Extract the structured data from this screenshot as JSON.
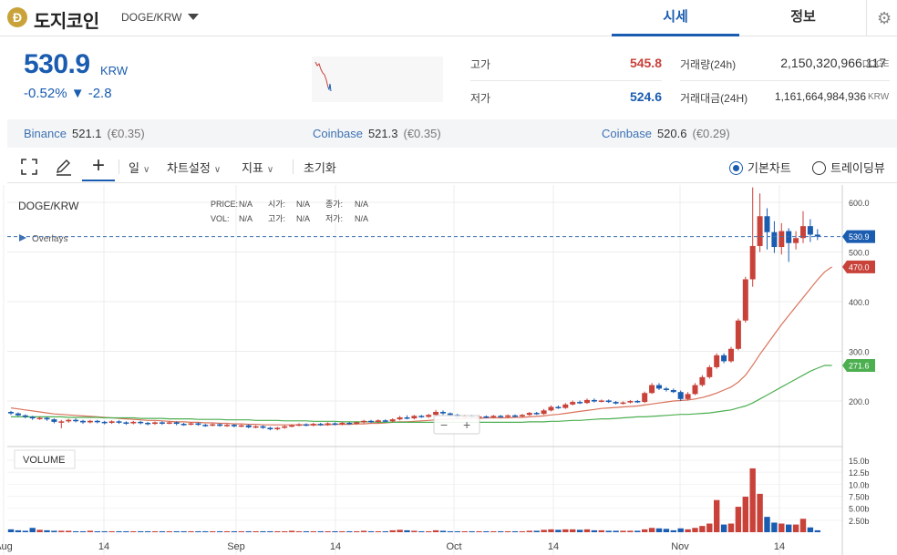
{
  "header": {
    "coin_symbol_glyph": "Ð",
    "coin_name": "도지코인",
    "pair": "DOGE/KRW",
    "tabs": [
      {
        "label": "시세",
        "active": true
      },
      {
        "label": "정보",
        "active": false
      }
    ]
  },
  "price": {
    "current": "530.9",
    "unit": "KRW",
    "change": "-0.52% ▼ -2.8"
  },
  "stats": {
    "high_label": "고가",
    "high_value": "545.8",
    "low_label": "저가",
    "low_value": "524.6",
    "volume_label": "거래량(24h)",
    "volume_value": "2,150,320,966.117",
    "volume_unit": "DOGE",
    "turnover_label": "거래대금(24H)",
    "turnover_value": "1,161,664,984,936",
    "turnover_unit": "KRW"
  },
  "exchanges": [
    {
      "name": "Binance",
      "price": "521.1",
      "fx": "(€0.35)"
    },
    {
      "name": "Coinbase",
      "price": "521.3",
      "fx": "(€0.35)"
    },
    {
      "name": "Coinbase",
      "price": "520.6",
      "fx": "(€0.29)"
    }
  ],
  "toolbar": {
    "icons": [
      "fullscreen-icon",
      "pencil-icon",
      "crosshair-icon"
    ],
    "period_label": "일",
    "settings_label": "차트설정",
    "indicator_label": "지표",
    "reset_label": "초기화",
    "view_basic_label": "기본차트",
    "view_tv_label": "트레이딩뷰",
    "view_selected": "basic"
  },
  "chart_data": {
    "type": "candlestick",
    "title": "DOGE/KRW",
    "ohlc_info": {
      "price_label": "PRICE:",
      "price_value": "N/A",
      "open_label": "시가:",
      "open_value": "N/A",
      "close_label": "종가:",
      "close_value": "N/A",
      "vol_label": "VOL:",
      "vol_value": "N/A",
      "high_label": "고가:",
      "high_value": "N/A",
      "low_label": "저가:",
      "low_value": "N/A"
    },
    "overlays_label": "Overlays",
    "volume_label": "VOLUME",
    "x_tick_labels": [
      "Aug",
      "14",
      "Sep",
      "14",
      "Oct",
      "14",
      "Nov",
      "14"
    ],
    "y_tick_labels": [
      "600.0",
      "500.0",
      "400.0",
      "300.0",
      "200.0"
    ],
    "ylim": [
      120,
      630
    ],
    "volume_tick_labels": [
      "15.0b",
      "12.5b",
      "10.0b",
      "7.50b",
      "5.00b",
      "2.50b"
    ],
    "volume_ylim": [
      0,
      17
    ],
    "last_price_label": "530.9",
    "last_price": 530.9,
    "ma_long_label": "470.0",
    "ma_long_value": 470.0,
    "ma_short_label": "271.6",
    "ma_short_value": 271.6,
    "zoom_minus": "−",
    "zoom_plus": "+",
    "colors": {
      "up": "#c8423a",
      "down": "#1a5cb0",
      "ma_long": "#d9735b",
      "ma_short": "#4caf50",
      "grid": "#e8e8e8"
    },
    "candles": [
      [
        178,
        175,
        180,
        172
      ],
      [
        175,
        171,
        177,
        169
      ],
      [
        171,
        168,
        173,
        165
      ],
      [
        168,
        165,
        170,
        162
      ],
      [
        165,
        166,
        169,
        162
      ],
      [
        166,
        163,
        168,
        160
      ],
      [
        163,
        158,
        165,
        155
      ],
      [
        158,
        159,
        162,
        145
      ],
      [
        159,
        162,
        164,
        156
      ],
      [
        162,
        160,
        165,
        157
      ],
      [
        160,
        157,
        162,
        154
      ],
      [
        157,
        160,
        162,
        155
      ],
      [
        160,
        158,
        162,
        155
      ],
      [
        158,
        156,
        160,
        153
      ],
      [
        156,
        159,
        161,
        154
      ],
      [
        159,
        157,
        161,
        154
      ],
      [
        157,
        155,
        159,
        152
      ],
      [
        155,
        158,
        160,
        153
      ],
      [
        158,
        156,
        160,
        153
      ],
      [
        156,
        154,
        158,
        151
      ],
      [
        154,
        157,
        159,
        152
      ],
      [
        157,
        155,
        159,
        152
      ],
      [
        155,
        157,
        159,
        153
      ],
      [
        157,
        154,
        159,
        151
      ],
      [
        154,
        153,
        156,
        150
      ],
      [
        153,
        155,
        157,
        151
      ],
      [
        155,
        152,
        157,
        150
      ],
      [
        152,
        151,
        154,
        148
      ],
      [
        151,
        153,
        155,
        149
      ],
      [
        153,
        150,
        155,
        148
      ],
      [
        150,
        152,
        154,
        148
      ],
      [
        152,
        149,
        154,
        147
      ],
      [
        149,
        151,
        153,
        147
      ],
      [
        151,
        147,
        153,
        145
      ],
      [
        147,
        149,
        151,
        145
      ],
      [
        149,
        146,
        151,
        144
      ],
      [
        146,
        143,
        148,
        141
      ],
      [
        143,
        146,
        148,
        141
      ],
      [
        146,
        149,
        151,
        144
      ],
      [
        149,
        151,
        153,
        147
      ],
      [
        151,
        153,
        155,
        149
      ],
      [
        153,
        151,
        155,
        149
      ],
      [
        151,
        154,
        156,
        149
      ],
      [
        154,
        152,
        156,
        150
      ],
      [
        152,
        155,
        157,
        150
      ],
      [
        155,
        153,
        157,
        151
      ],
      [
        153,
        156,
        158,
        151
      ],
      [
        156,
        154,
        158,
        152
      ],
      [
        154,
        157,
        159,
        152
      ],
      [
        157,
        160,
        162,
        155
      ],
      [
        160,
        158,
        162,
        156
      ],
      [
        158,
        161,
        163,
        156
      ],
      [
        161,
        159,
        163,
        157
      ],
      [
        159,
        163,
        165,
        157
      ],
      [
        163,
        167,
        170,
        161
      ],
      [
        167,
        165,
        171,
        163
      ],
      [
        165,
        170,
        172,
        163
      ],
      [
        170,
        168,
        172,
        166
      ],
      [
        168,
        172,
        174,
        166
      ],
      [
        172,
        178,
        182,
        170
      ],
      [
        178,
        175,
        181,
        172
      ],
      [
        175,
        172,
        177,
        170
      ],
      [
        172,
        168,
        174,
        165
      ],
      [
        168,
        170,
        172,
        166
      ],
      [
        170,
        167,
        172,
        165
      ],
      [
        167,
        169,
        171,
        165
      ],
      [
        169,
        167,
        171,
        165
      ],
      [
        167,
        170,
        172,
        165
      ],
      [
        170,
        168,
        172,
        166
      ],
      [
        168,
        171,
        173,
        166
      ],
      [
        171,
        169,
        173,
        167
      ],
      [
        169,
        172,
        174,
        167
      ],
      [
        172,
        176,
        178,
        170
      ],
      [
        176,
        174,
        178,
        172
      ],
      [
        174,
        181,
        184,
        172
      ],
      [
        181,
        188,
        191,
        179
      ],
      [
        188,
        186,
        191,
        184
      ],
      [
        186,
        193,
        196,
        184
      ],
      [
        193,
        198,
        201,
        191
      ],
      [
        198,
        196,
        201,
        194
      ],
      [
        196,
        202,
        205,
        194
      ],
      [
        202,
        199,
        205,
        197
      ],
      [
        199,
        201,
        203,
        197
      ],
      [
        201,
        198,
        203,
        196
      ],
      [
        198,
        195,
        200,
        193
      ],
      [
        195,
        197,
        199,
        193
      ],
      [
        197,
        200,
        202,
        195
      ],
      [
        200,
        198,
        202,
        196
      ],
      [
        198,
        216,
        219,
        196
      ],
      [
        216,
        232,
        236,
        214
      ],
      [
        232,
        225,
        236,
        222
      ],
      [
        225,
        222,
        228,
        219
      ],
      [
        222,
        218,
        225,
        216
      ],
      [
        218,
        204,
        221,
        200
      ],
      [
        204,
        214,
        218,
        201
      ],
      [
        214,
        232,
        236,
        212
      ],
      [
        232,
        248,
        252,
        229
      ],
      [
        248,
        268,
        272,
        245
      ],
      [
        268,
        292,
        296,
        265
      ],
      [
        292,
        280,
        296,
        276
      ],
      [
        280,
        305,
        309,
        277
      ],
      [
        305,
        362,
        366,
        302
      ],
      [
        362,
        445,
        450,
        358
      ],
      [
        445,
        512,
        630,
        430
      ],
      [
        512,
        572,
        618,
        500
      ],
      [
        572,
        540,
        588,
        505
      ],
      [
        540,
        510,
        562,
        498
      ],
      [
        510,
        542,
        558,
        495
      ],
      [
        542,
        518,
        548,
        480
      ],
      [
        518,
        528,
        542,
        505
      ],
      [
        528,
        552,
        582,
        518
      ],
      [
        552,
        535,
        566,
        520
      ],
      [
        535,
        531,
        546,
        524
      ]
    ],
    "volumes": [
      0.6,
      0.4,
      0.3,
      0.9,
      0.5,
      0.4,
      0.3,
      0.3,
      0.3,
      0.2,
      0.2,
      0.3,
      0.2,
      0.2,
      0.2,
      0.2,
      0.2,
      0.2,
      0.2,
      0.2,
      0.2,
      0.2,
      0.2,
      0.2,
      0.2,
      0.2,
      0.2,
      0.2,
      0.2,
      0.2,
      0.2,
      0.2,
      0.2,
      0.2,
      0.2,
      0.2,
      0.2,
      0.2,
      0.2,
      0.3,
      0.2,
      0.2,
      0.2,
      0.2,
      0.2,
      0.2,
      0.2,
      0.2,
      0.2,
      0.3,
      0.2,
      0.2,
      0.2,
      0.4,
      0.5,
      0.4,
      0.3,
      0.2,
      0.2,
      0.4,
      0.3,
      0.2,
      0.2,
      0.2,
      0.2,
      0.2,
      0.2,
      0.2,
      0.2,
      0.2,
      0.2,
      0.2,
      0.3,
      0.3,
      0.5,
      0.6,
      0.5,
      0.6,
      0.6,
      0.5,
      0.6,
      0.4,
      0.4,
      0.3,
      0.3,
      0.3,
      0.3,
      0.3,
      0.6,
      0.9,
      0.8,
      0.7,
      0.4,
      0.8,
      0.6,
      0.9,
      1.3,
      1.8,
      6.7,
      1.6,
      1.8,
      5.3,
      7.4,
      13.3,
      8.0,
      3.2,
      2.0,
      1.8,
      1.6,
      1.6,
      2.8,
      1.0,
      0.4
    ],
    "ma_long": [
      186,
      184,
      182,
      180,
      178,
      176,
      174,
      173,
      172,
      171,
      170,
      169,
      168,
      167,
      166,
      165,
      164,
      163,
      162,
      161,
      161,
      160,
      159,
      158,
      158,
      157,
      157,
      156,
      156,
      155,
      155,
      154,
      154,
      153,
      153,
      152,
      152,
      152,
      152,
      152,
      152,
      152,
      152,
      152,
      152,
      153,
      153,
      153,
      154,
      154,
      155,
      155,
      156,
      157,
      158,
      158,
      159,
      160,
      161,
      162,
      163,
      164,
      164,
      165,
      165,
      165,
      166,
      166,
      166,
      166,
      167,
      167,
      168,
      169,
      170,
      172,
      173,
      175,
      177,
      179,
      181,
      183,
      185,
      186,
      187,
      188,
      189,
      190,
      192,
      194,
      196,
      198,
      200,
      201,
      202,
      204,
      207,
      211,
      216,
      222,
      228,
      238,
      252,
      272,
      294,
      314,
      334,
      354,
      372,
      390,
      408,
      426,
      444,
      460,
      470
    ],
    "ma_short": [
      168,
      168,
      168,
      168,
      168,
      168,
      168,
      168,
      167,
      167,
      167,
      167,
      167,
      166,
      166,
      166,
      166,
      166,
      165,
      165,
      165,
      165,
      164,
      164,
      164,
      164,
      163,
      163,
      163,
      163,
      162,
      162,
      162,
      162,
      161,
      161,
      161,
      161,
      160,
      160,
      160,
      160,
      159,
      159,
      159,
      159,
      158,
      158,
      158,
      158,
      158,
      157,
      157,
      157,
      157,
      157,
      157,
      157,
      157,
      157,
      157,
      157,
      157,
      157,
      157,
      157,
      157,
      157,
      157,
      157,
      157,
      157,
      158,
      158,
      158,
      159,
      159,
      160,
      161,
      161,
      162,
      163,
      164,
      164,
      165,
      166,
      167,
      168,
      168,
      169,
      170,
      171,
      172,
      173,
      173,
      174,
      175,
      176,
      178,
      180,
      182,
      186,
      190,
      196,
      204,
      212,
      220,
      228,
      236,
      244,
      252,
      260,
      266,
      271.6,
      271.6
    ]
  }
}
